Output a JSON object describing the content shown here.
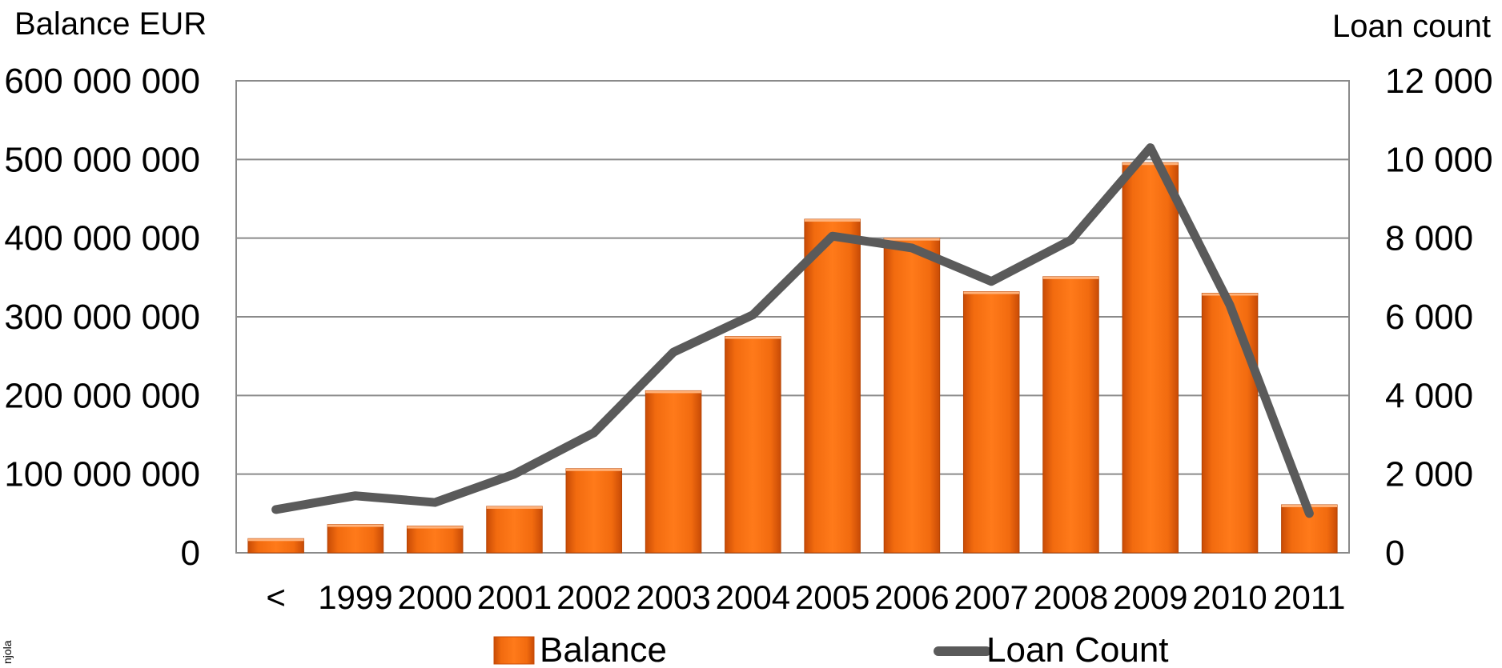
{
  "chart_data": {
    "type": "bar",
    "categories": [
      "<",
      "1999",
      "2000",
      "2001",
      "2002",
      "2003",
      "2004",
      "2005",
      "2006",
      "2007",
      "2008",
      "2009",
      "2010",
      "2011"
    ],
    "series": [
      {
        "name": "Balance",
        "type": "bar",
        "axis": "left",
        "color": "#f26b0f",
        "values": [
          18000000,
          36000000,
          34000000,
          59000000,
          107000000,
          206000000,
          275000000,
          424000000,
          400000000,
          332000000,
          351000000,
          496000000,
          330000000,
          61000000
        ]
      },
      {
        "name": "Loan Count",
        "type": "line",
        "axis": "right",
        "color": "#5a5a5a",
        "values": [
          1100,
          1450,
          1280,
          2000,
          3050,
          5100,
          6050,
          8050,
          7750,
          6900,
          7950,
          10300,
          6300,
          1000
        ]
      }
    ],
    "left_axis": {
      "title": "Balance EUR",
      "range": [
        0,
        600000000
      ],
      "ticks": [
        "0",
        "100 000 000",
        "200 000 000",
        "300 000 000",
        "400 000 000",
        "500 000 000",
        "600 000 000"
      ]
    },
    "right_axis": {
      "title": "Loan count",
      "range": [
        0,
        12000
      ],
      "ticks": [
        "0",
        "2 000",
        "4 000",
        "6 000",
        "8 000",
        "10 000",
        "12 000"
      ]
    },
    "grid": true,
    "legend_position": "bottom"
  },
  "side_note": "njola"
}
